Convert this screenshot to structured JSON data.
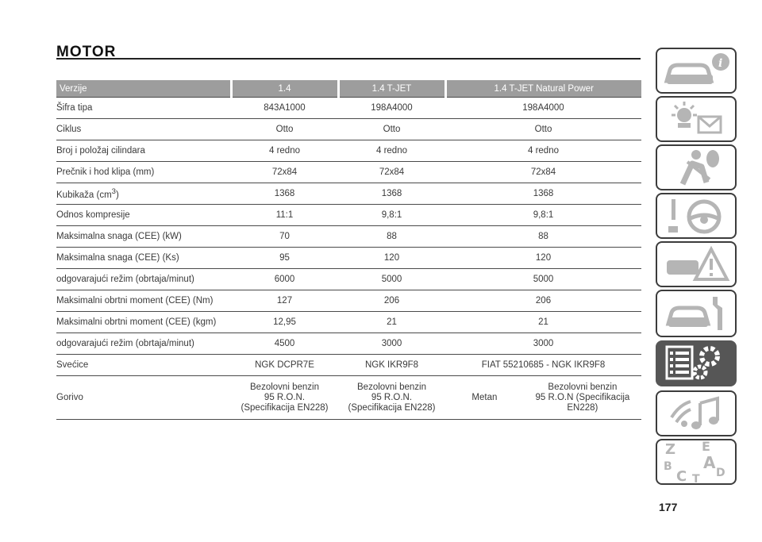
{
  "page": {
    "title": "MOTOR",
    "page_number": "177"
  },
  "table": {
    "headers": [
      "Verzije",
      "1.4",
      "1.4 T-JET",
      "1.4 T-JET Natural Power"
    ],
    "rows": [
      {
        "label": "Šifra tipa",
        "v1": "843A1000",
        "v2": "198A4000",
        "v3": "198A4000"
      },
      {
        "label": "Ciklus",
        "v1": "Otto",
        "v2": "Otto",
        "v3": "Otto"
      },
      {
        "label": "Broj i položaj cilindara",
        "v1": "4 redno",
        "v2": "4 redno",
        "v3": "4 redno"
      },
      {
        "label": "Prečnik i hod klipa (mm)",
        "v1": "72x84",
        "v2": "72x84",
        "v3": "72x84"
      },
      {
        "label": "Kubikaža (cm",
        "label_sup": "3",
        "label_end": ")",
        "v1": "1368",
        "v2": "1368",
        "v3": "1368"
      },
      {
        "label": "Odnos kompresije",
        "v1": "11:1",
        "v2": "9,8:1",
        "v3": "9,8:1"
      },
      {
        "label": "Maksimalna snaga (CEE) (kW)",
        "v1": "70",
        "v2": "88",
        "v3": "88"
      },
      {
        "label": "Maksimalna snaga (CEE) (Ks)",
        "v1": "95",
        "v2": "120",
        "v3": "120"
      },
      {
        "label": "odgovarajući režim (obrtaja/minut)",
        "v1": "6000",
        "v2": "5000",
        "v3": "5000"
      },
      {
        "label": "Maksimalni obrtni moment (CEE) (Nm)",
        "v1": "127",
        "v2": "206",
        "v3": "206"
      },
      {
        "label": "Maksimalni obrtni moment (CEE) (kgm)",
        "v1": "12,95",
        "v2": "21",
        "v3": "21"
      },
      {
        "label": "odgovarajući režim (obrtaja/minut)",
        "v1": "4500",
        "v2": "3000",
        "v3": "3000"
      },
      {
        "label": "Svećice",
        "v1": "NGK DCPR7E",
        "v2": "NGK IKR9F8",
        "v3": "FIAT 55210685 - NGK IKR9F8"
      }
    ],
    "gorivo": {
      "label": "Gorivo",
      "v1": [
        "Bezolovni benzin",
        "95 R.O.N.",
        "(Specifikacija EN228)"
      ],
      "v2": [
        "Bezolovni benzin",
        "95 R.O.N.",
        "(Specifikacija EN228)"
      ],
      "v3_left": "Metan",
      "v3_right": [
        "Bezolovni benzin",
        "95 R.O.N (Specifikacija",
        "EN228)"
      ]
    }
  },
  "sidebar": {
    "tabs": [
      {
        "icon": "car-info-icon",
        "active": false
      },
      {
        "icon": "warning-lights-icon",
        "active": false
      },
      {
        "icon": "airbag-safety-icon",
        "active": false
      },
      {
        "icon": "steering-wheel-icon",
        "active": false
      },
      {
        "icon": "emergency-triangle-icon",
        "active": false
      },
      {
        "icon": "car-maintenance-icon",
        "active": false
      },
      {
        "icon": "technical-data-icon",
        "active": true
      },
      {
        "icon": "multimedia-icon",
        "active": false
      },
      {
        "icon": "alphabetical-index-icon",
        "active": false
      }
    ],
    "index_letters": [
      "Z",
      "E",
      "B",
      "A",
      "C",
      "D",
      "T"
    ],
    "colors": {
      "tab_border": "#3c3c3c",
      "active_bg": "#565656",
      "icon_gray": "#b5b5b5"
    }
  }
}
